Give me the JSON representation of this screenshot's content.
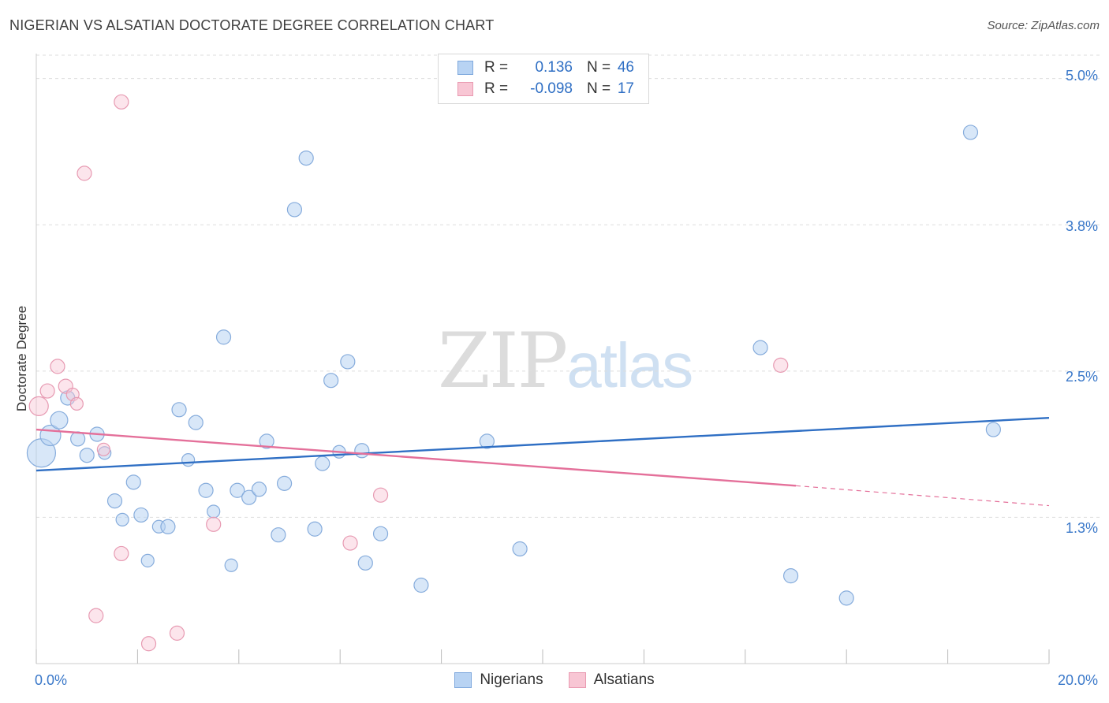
{
  "title": "NIGERIAN VS ALSATIAN DOCTORATE DEGREE CORRELATION CHART",
  "source": "Source: ZipAtlas.com",
  "watermark": {
    "zip": "ZIP",
    "atlas": "atlas"
  },
  "legend_top": [
    {
      "r_label": "R =",
      "r_value": "0.136",
      "n_label": "N =",
      "n_value": "46",
      "color": "#b8d3f3",
      "border": "#7fa9dd"
    },
    {
      "r_label": "R =",
      "r_value": "-0.098",
      "n_label": "N =",
      "n_value": "17",
      "color": "#f8c6d4",
      "border": "#e99ab1"
    }
  ],
  "legend_bottom": [
    {
      "label": "Nigerians",
      "color": "#b8d3f3",
      "border": "#7fa9dd"
    },
    {
      "label": "Alsatians",
      "color": "#f8c6d4",
      "border": "#e99ab1"
    }
  ],
  "colors": {
    "blue_line": "#2f6fc4",
    "pink_line": "#e4709a",
    "grid": "#dddddd",
    "tick_text": "#3a78c9"
  },
  "chart_data": {
    "type": "scatter",
    "title": "NIGERIAN VS ALSATIAN DOCTORATE DEGREE CORRELATION CHART",
    "xlabel": "",
    "ylabel": "Doctorate Degree",
    "xlim": [
      0,
      20
    ],
    "ylim": [
      0,
      5.24
    ],
    "x_tick_labels": [
      {
        "value": 0,
        "label": "0.0%"
      },
      {
        "value": 20,
        "label": "20.0%"
      }
    ],
    "y_tick_labels": [
      {
        "value": 1.25,
        "label": "1.3%"
      },
      {
        "value": 2.5,
        "label": "2.5%"
      },
      {
        "value": 3.75,
        "label": "3.8%"
      },
      {
        "value": 5.0,
        "label": "5.0%"
      }
    ],
    "grid": true,
    "series": [
      {
        "name": "Nigerians",
        "points": [
          {
            "x": 0.1,
            "y": 1.8,
            "s": 18
          },
          {
            "x": 0.28,
            "y": 1.95,
            "s": 13
          },
          {
            "x": 0.45,
            "y": 2.08,
            "s": 11
          },
          {
            "x": 0.62,
            "y": 2.27,
            "s": 9
          },
          {
            "x": 0.82,
            "y": 1.92,
            "s": 9
          },
          {
            "x": 1.0,
            "y": 1.78,
            "s": 9
          },
          {
            "x": 1.2,
            "y": 1.96,
            "s": 9
          },
          {
            "x": 1.35,
            "y": 1.8,
            "s": 8
          },
          {
            "x": 1.55,
            "y": 1.39,
            "s": 9
          },
          {
            "x": 1.7,
            "y": 1.23,
            "s": 8
          },
          {
            "x": 1.92,
            "y": 1.55,
            "s": 9
          },
          {
            "x": 2.07,
            "y": 1.27,
            "s": 9
          },
          {
            "x": 2.2,
            "y": 0.88,
            "s": 8
          },
          {
            "x": 2.42,
            "y": 1.17,
            "s": 8
          },
          {
            "x": 2.6,
            "y": 1.17,
            "s": 9
          },
          {
            "x": 2.82,
            "y": 2.17,
            "s": 9
          },
          {
            "x": 3.0,
            "y": 1.74,
            "s": 8
          },
          {
            "x": 3.15,
            "y": 2.06,
            "s": 9
          },
          {
            "x": 3.35,
            "y": 1.48,
            "s": 9
          },
          {
            "x": 3.5,
            "y": 1.3,
            "s": 8
          },
          {
            "x": 3.7,
            "y": 2.79,
            "s": 9
          },
          {
            "x": 3.85,
            "y": 0.84,
            "s": 8
          },
          {
            "x": 3.97,
            "y": 1.48,
            "s": 9
          },
          {
            "x": 4.2,
            "y": 1.42,
            "s": 9
          },
          {
            "x": 4.4,
            "y": 1.49,
            "s": 9
          },
          {
            "x": 4.55,
            "y": 1.9,
            "s": 9
          },
          {
            "x": 4.78,
            "y": 1.1,
            "s": 9
          },
          {
            "x": 4.9,
            "y": 1.54,
            "s": 9
          },
          {
            "x": 5.1,
            "y": 3.88,
            "s": 9
          },
          {
            "x": 5.33,
            "y": 4.32,
            "s": 9
          },
          {
            "x": 5.5,
            "y": 1.15,
            "s": 9
          },
          {
            "x": 5.65,
            "y": 1.71,
            "s": 9
          },
          {
            "x": 5.82,
            "y": 2.42,
            "s": 9
          },
          {
            "x": 5.98,
            "y": 1.81,
            "s": 8
          },
          {
            "x": 6.15,
            "y": 2.58,
            "s": 9
          },
          {
            "x": 6.43,
            "y": 1.82,
            "s": 9
          },
          {
            "x": 6.5,
            "y": 0.86,
            "s": 9
          },
          {
            "x": 6.8,
            "y": 1.11,
            "s": 9
          },
          {
            "x": 7.6,
            "y": 0.67,
            "s": 9
          },
          {
            "x": 8.9,
            "y": 1.9,
            "s": 9
          },
          {
            "x": 9.55,
            "y": 0.98,
            "s": 9
          },
          {
            "x": 14.3,
            "y": 2.7,
            "s": 9
          },
          {
            "x": 14.9,
            "y": 0.75,
            "s": 9
          },
          {
            "x": 16.0,
            "y": 0.56,
            "s": 9
          },
          {
            "x": 18.45,
            "y": 4.54,
            "s": 9
          },
          {
            "x": 18.9,
            "y": 2.0,
            "s": 9
          }
        ],
        "trendline": {
          "x": [
            0,
            20
          ],
          "y": [
            1.65,
            2.1
          ]
        }
      },
      {
        "name": "Alsatians",
        "points": [
          {
            "x": 0.05,
            "y": 2.2,
            "s": 12
          },
          {
            "x": 0.22,
            "y": 2.33,
            "s": 9
          },
          {
            "x": 0.42,
            "y": 2.54,
            "s": 9
          },
          {
            "x": 0.58,
            "y": 2.37,
            "s": 9
          },
          {
            "x": 0.72,
            "y": 2.3,
            "s": 8
          },
          {
            "x": 0.8,
            "y": 2.22,
            "s": 8
          },
          {
            "x": 0.95,
            "y": 4.19,
            "s": 9
          },
          {
            "x": 1.18,
            "y": 0.41,
            "s": 9
          },
          {
            "x": 1.33,
            "y": 1.83,
            "s": 8
          },
          {
            "x": 1.68,
            "y": 4.8,
            "s": 9
          },
          {
            "x": 1.68,
            "y": 0.94,
            "s": 9
          },
          {
            "x": 2.22,
            "y": 0.17,
            "s": 9
          },
          {
            "x": 2.78,
            "y": 0.26,
            "s": 9
          },
          {
            "x": 3.5,
            "y": 1.19,
            "s": 9
          },
          {
            "x": 6.2,
            "y": 1.03,
            "s": 9
          },
          {
            "x": 6.8,
            "y": 1.44,
            "s": 9
          },
          {
            "x": 14.7,
            "y": 2.55,
            "s": 9
          }
        ],
        "trendline": {
          "x": [
            0,
            15.0
          ],
          "y": [
            2.0,
            1.52
          ]
        },
        "trendline_dashed": {
          "x": [
            15.0,
            20
          ],
          "y": [
            1.52,
            1.35
          ]
        }
      }
    ]
  }
}
